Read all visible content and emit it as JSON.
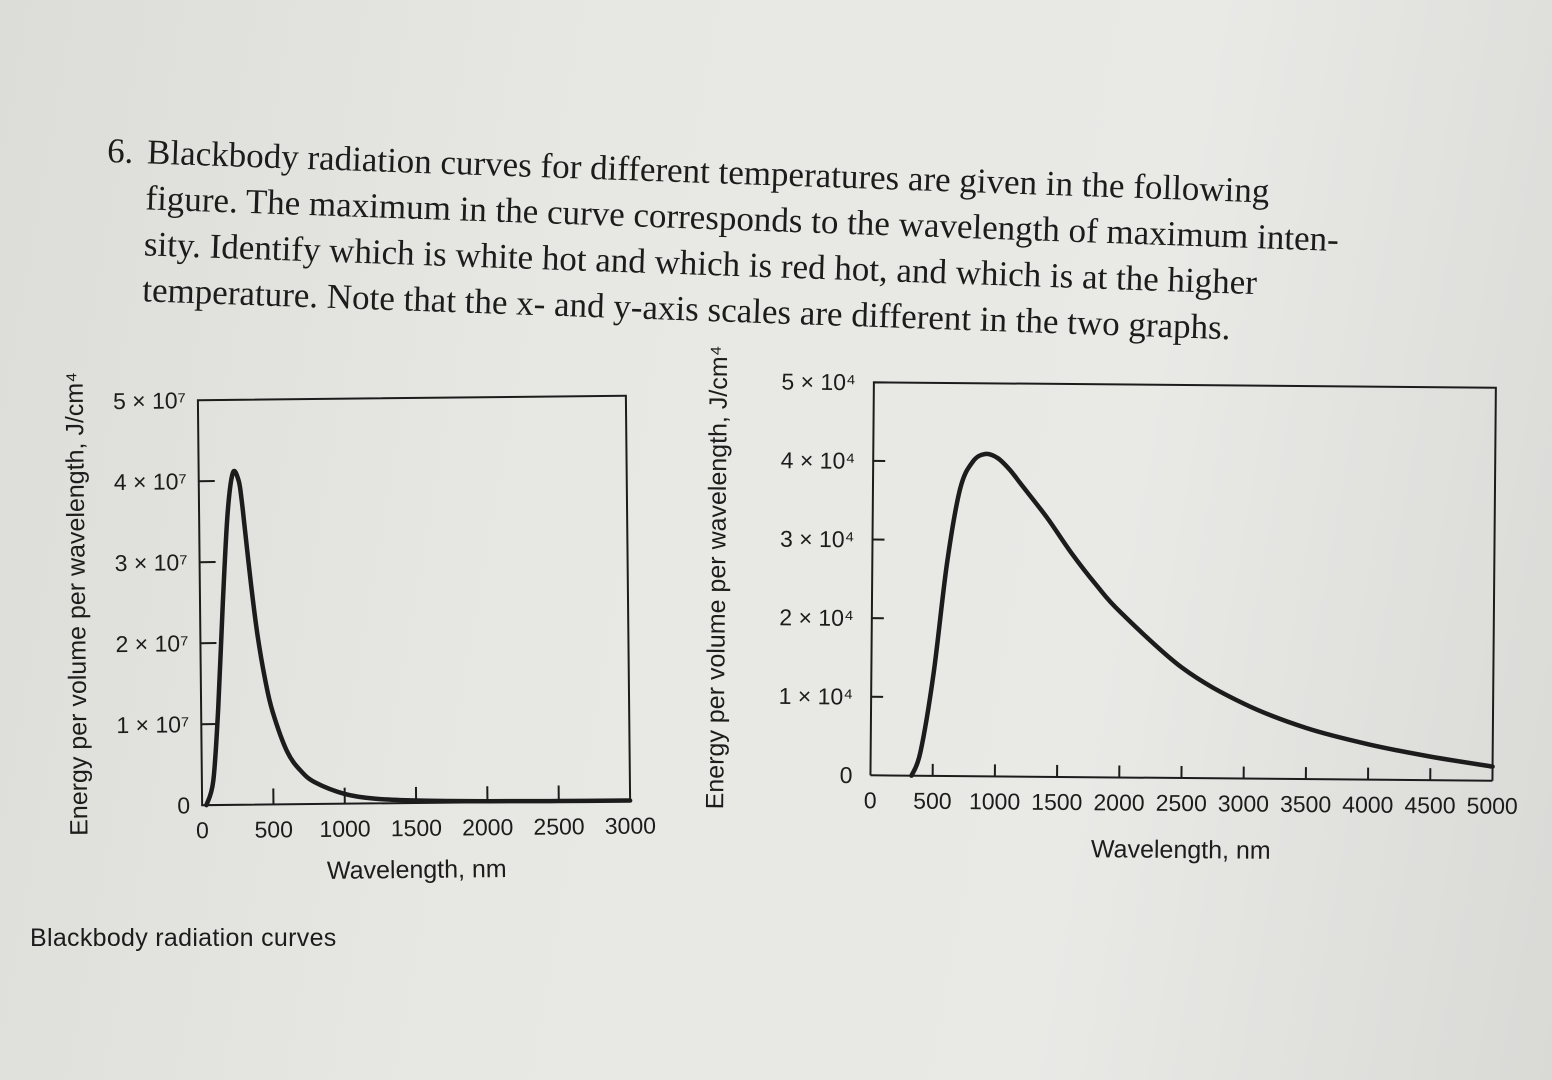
{
  "question": {
    "number": "6.",
    "lines": [
      "Blackbody radiation curves for different temperatures are given in the following",
      "figure. The maximum in the curve corresponds to the wavelength of maximum inten-",
      "sity. Identify which is white hot and which is red hot, and which is at the higher",
      "temperature. Note that the x- and y-axis scales are different in the two graphs."
    ]
  },
  "caption": "Blackbody radiation curves",
  "chart_data": [
    {
      "type": "line",
      "xlabel": "Wavelength, nm",
      "ylabel": "Energy per volume per wavelength, J/cm⁴",
      "x_ticks": [
        "0",
        "500",
        "1000",
        "1500",
        "2000",
        "2500",
        "3000"
      ],
      "y_ticks": [
        "0",
        "1 × 10⁷",
        "2 × 10⁷",
        "3 × 10⁷",
        "4 × 10⁷",
        "5 × 10⁷"
      ],
      "xlim": [
        0,
        3000
      ],
      "ylim": [
        0,
        50000000
      ],
      "series": [
        {
          "x": [
            30,
            80,
            120,
            160,
            200,
            240,
            280,
            300,
            320,
            360,
            400,
            450,
            500,
            600,
            700,
            800,
            1000,
            1200,
            1500,
            2000,
            2500,
            3000
          ],
          "y": [
            0,
            3000000,
            12000000,
            25000000,
            36000000,
            41000000,
            40000000,
            37500000,
            34000000,
            27000000,
            21000000,
            15500000,
            11500000,
            6500000,
            4000000,
            2600000,
            1200000,
            600000,
            300000,
            120000,
            50000,
            20000
          ]
        }
      ]
    },
    {
      "type": "line",
      "xlabel": "Wavelength, nm",
      "ylabel": "Energy per volume per wavelength, J/cm⁴",
      "x_ticks": [
        "0",
        "500",
        "1000",
        "1500",
        "2000",
        "2500",
        "3000",
        "3500",
        "4000",
        "4500",
        "5000"
      ],
      "y_ticks": [
        "0",
        "1 × 10⁴",
        "2 × 10⁴",
        "3 × 10⁴",
        "4 × 10⁴",
        "5 × 10⁴"
      ],
      "xlim": [
        0,
        5000
      ],
      "ylim": [
        0,
        50000
      ],
      "series": [
        {
          "x": [
            330,
            400,
            500,
            600,
            700,
            800,
            900,
            1000,
            1100,
            1200,
            1400,
            1600,
            1800,
            2000,
            2500,
            3000,
            3500,
            4000,
            4500,
            5000
          ],
          "y": [
            0,
            3000,
            13000,
            27000,
            36500,
            40000,
            41000,
            40500,
            39000,
            37000,
            33000,
            28500,
            24500,
            21000,
            14000,
            9500,
            6500,
            4500,
            3000,
            1800
          ]
        }
      ]
    }
  ]
}
